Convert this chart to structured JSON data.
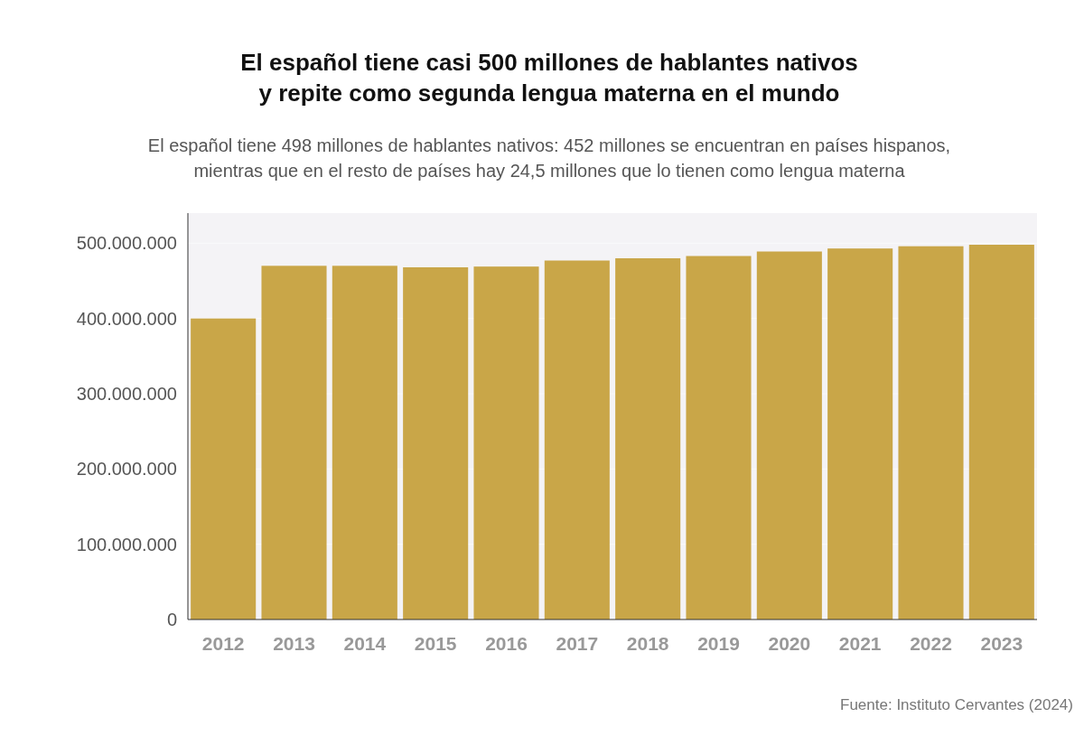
{
  "chart_data": {
    "type": "bar",
    "title": "El español tiene casi 500 millones de hablantes nativos\ny repite como segunda lengua materna en el mundo",
    "subtitle": "El español tiene 498 millones de hablantes nativos: 452 millones se encuentran en países hispanos,\nmientras que en el resto de países hay 24,5 millones que lo tienen como lengua materna",
    "categories": [
      "2012",
      "2013",
      "2014",
      "2015",
      "2016",
      "2017",
      "2018",
      "2019",
      "2020",
      "2021",
      "2022",
      "2023"
    ],
    "values": [
      400000000,
      470000000,
      470000000,
      468000000,
      469000000,
      477000000,
      480000000,
      483000000,
      489000000,
      493000000,
      496000000,
      498000000
    ],
    "color": "#c9a648",
    "ylim": [
      0,
      540000000
    ],
    "yticks": [
      {
        "value": 0,
        "label": "0"
      },
      {
        "value": 100000000,
        "label": "100.000.000"
      },
      {
        "value": 200000000,
        "label": "200.000.000"
      },
      {
        "value": 300000000,
        "label": "300.000.000"
      },
      {
        "value": 400000000,
        "label": "400.000.000"
      },
      {
        "value": 500000000,
        "label": "500.000.000"
      }
    ],
    "grid": "y",
    "annotations": [
      "Fuente: Instituto Cervantes (2024)"
    ]
  }
}
